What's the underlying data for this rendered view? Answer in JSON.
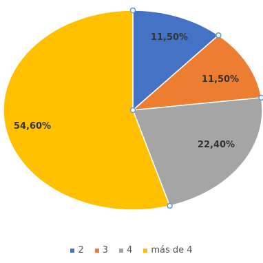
{
  "chart_data": {
    "type": "pie",
    "title": "",
    "categories": [
      "2",
      "3",
      "4",
      "más de 4"
    ],
    "values": [
      11.5,
      11.5,
      22.4,
      54.6
    ],
    "data_labels": [
      "11,50%",
      "11,50%",
      "22,40%",
      "54,60%"
    ],
    "colors": [
      "#4472C4",
      "#ED7D31",
      "#A5A5A5",
      "#FFC000"
    ],
    "legend_position": "bottom",
    "start_angle": "top, clockwise"
  }
}
